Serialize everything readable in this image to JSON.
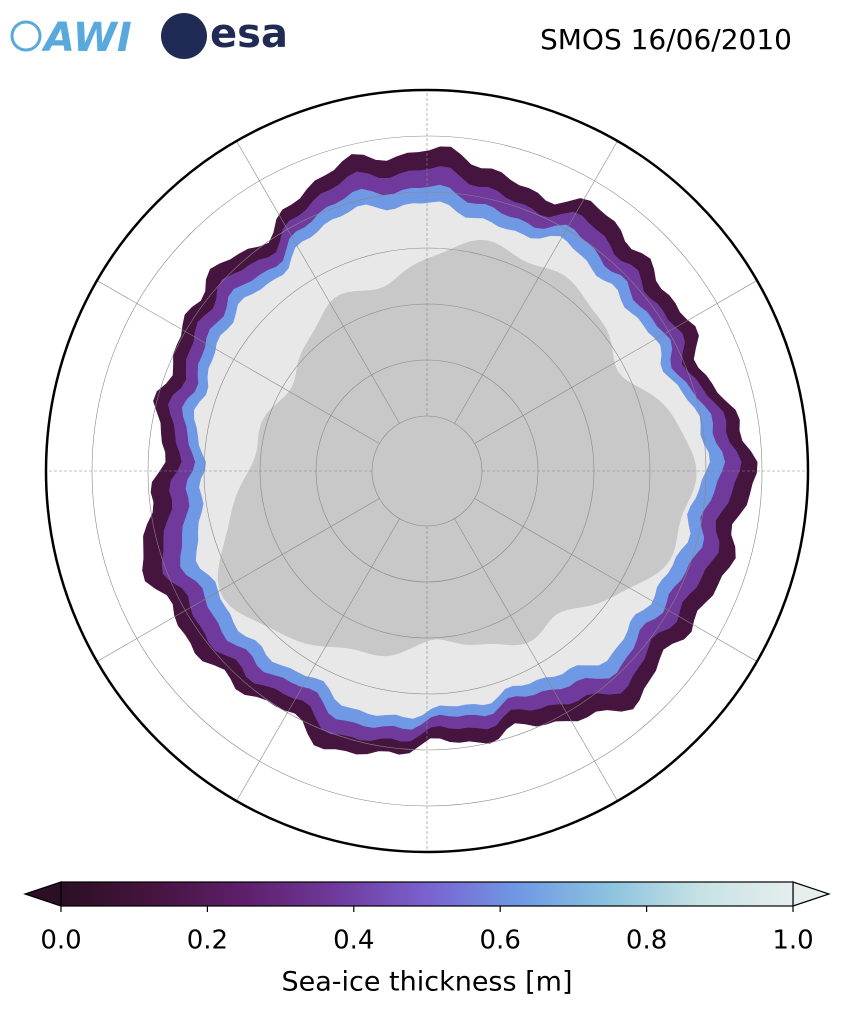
{
  "header": {
    "logos": [
      "AWI",
      "esa"
    ],
    "title": "SMOS 16/06/2010"
  },
  "colorbar": {
    "label": "Sea-ice thickness [m]",
    "lim": [
      0,
      1
    ],
    "ticks": [
      {
        "value": 0,
        "label": "0.0"
      },
      0.2,
      0.4,
      0.6,
      0.8,
      {
        "value": 1,
        "label": "1.0"
      }
    ],
    "colors": [
      "#2b0f24",
      "#45143f",
      "#5e1f6b",
      "#6f3a9c",
      "#7a62cf",
      "#6f99e4",
      "#8cc3de",
      "#c7e2e4",
      "#e6eeee"
    ]
  }
}
